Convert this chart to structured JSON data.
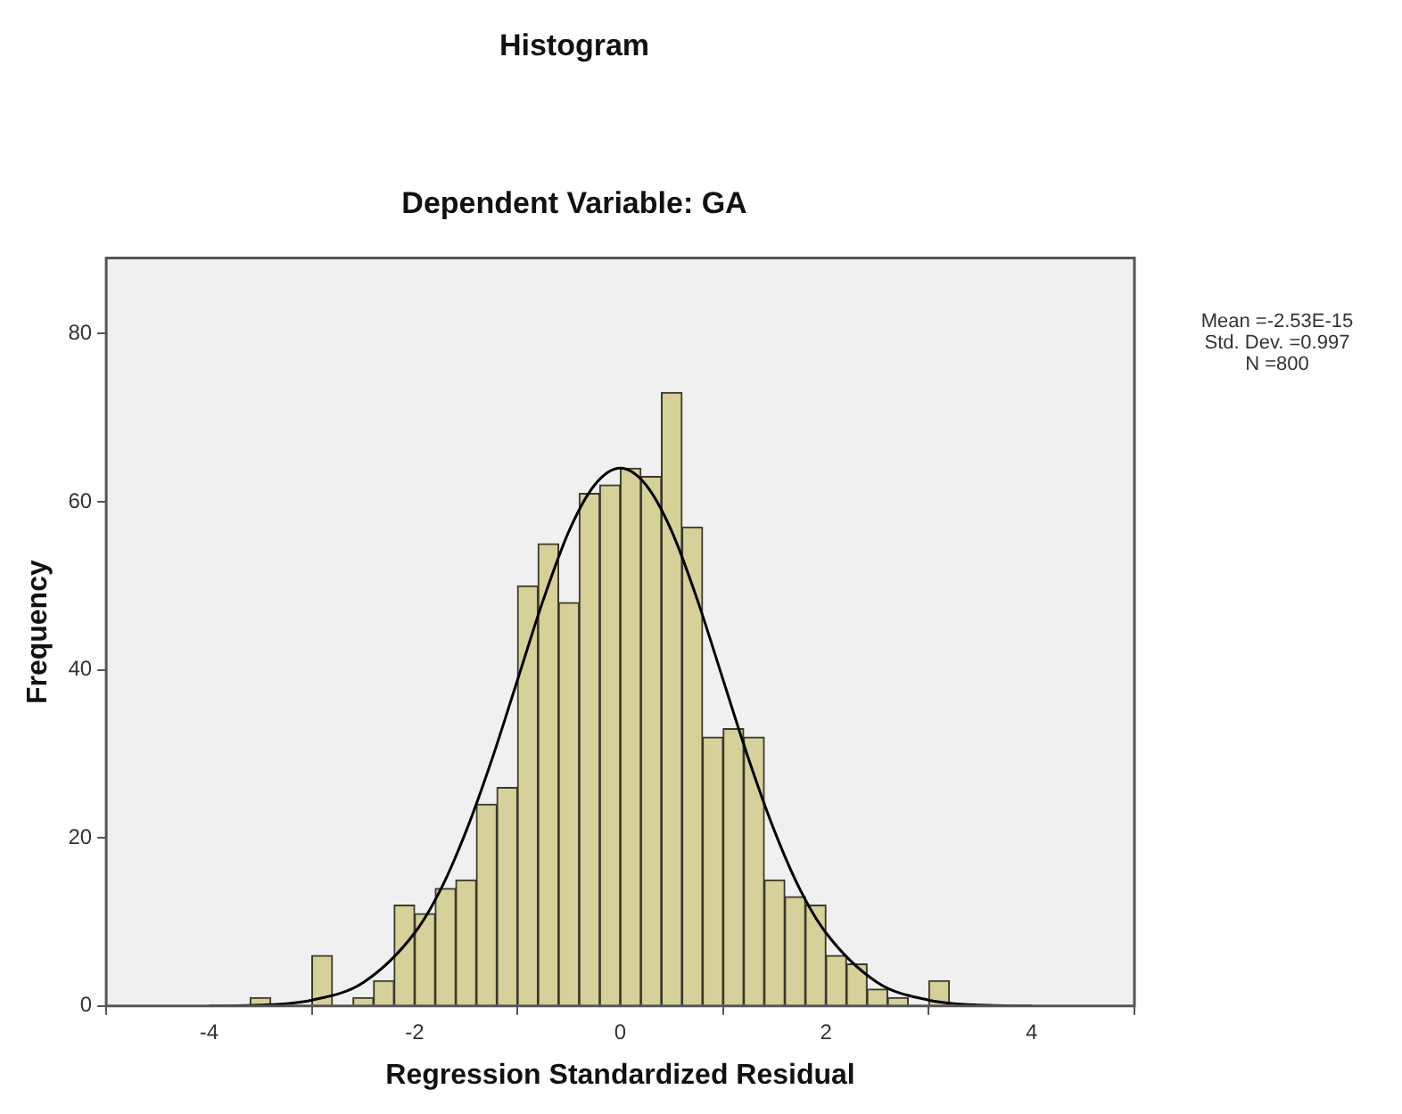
{
  "chart_data": {
    "type": "histogram",
    "title": "Histogram",
    "subtitle": "Dependent Variable: GA",
    "xlabel": "Regression Standardized Residual",
    "ylabel": "Frequency",
    "bins": [
      -3.6,
      -3.4,
      -3.2,
      -3.0,
      -2.8,
      -2.6,
      -2.4,
      -2.2,
      -2.0,
      -1.8,
      -1.6,
      -1.4,
      -1.2,
      -1.0,
      -0.8,
      -0.6,
      -0.4,
      -0.2,
      0,
      0.2,
      0.4,
      0.6,
      0.8,
      1.0,
      1.2,
      1.4,
      1.6,
      1.8,
      2.0,
      2.2,
      2.4,
      2.6,
      2.8,
      3.0,
      3.2
    ],
    "values": [
      1,
      0,
      0,
      6,
      0,
      1,
      3,
      12,
      11,
      14,
      15,
      24,
      26,
      50,
      55,
      48,
      61,
      62,
      64,
      63,
      73,
      57,
      32,
      33,
      32,
      15,
      13,
      12,
      6,
      5,
      2,
      1,
      0,
      3
    ],
    "color": "#d6d09a",
    "series": [
      {
        "type": "line",
        "color": "#000000",
        "x": [
          -4,
          -3.5,
          -3,
          -2.5,
          -2,
          -1.75,
          -1.5,
          -1.25,
          -1,
          -0.75,
          -0.5,
          -0.25,
          0,
          0.25,
          0.5,
          0.75,
          1,
          1.25,
          1.5,
          1.75,
          2,
          2.5,
          3,
          3.5,
          4
        ],
        "values": [
          0,
          0.1,
          0.7,
          2.8,
          8.7,
          13.8,
          20.8,
          29.3,
          38.8,
          48.3,
          56.5,
          62,
          64,
          62,
          56.5,
          48.3,
          38.8,
          29.3,
          20.8,
          13.8,
          8.7,
          2.8,
          0.7,
          0.1,
          0
        ]
      }
    ],
    "xlim": [
      -5,
      5
    ],
    "xticks": [
      -4,
      -2,
      0,
      2,
      4
    ],
    "ylim": [
      0,
      89
    ],
    "yticks": [
      0,
      20,
      40,
      60,
      80
    ],
    "grid": false,
    "legend": false,
    "marker": "none",
    "line_style": "solid",
    "annotations": [
      "Mean =-2.53E-15\nStd. Dev. =0.997\nN =800"
    ]
  }
}
